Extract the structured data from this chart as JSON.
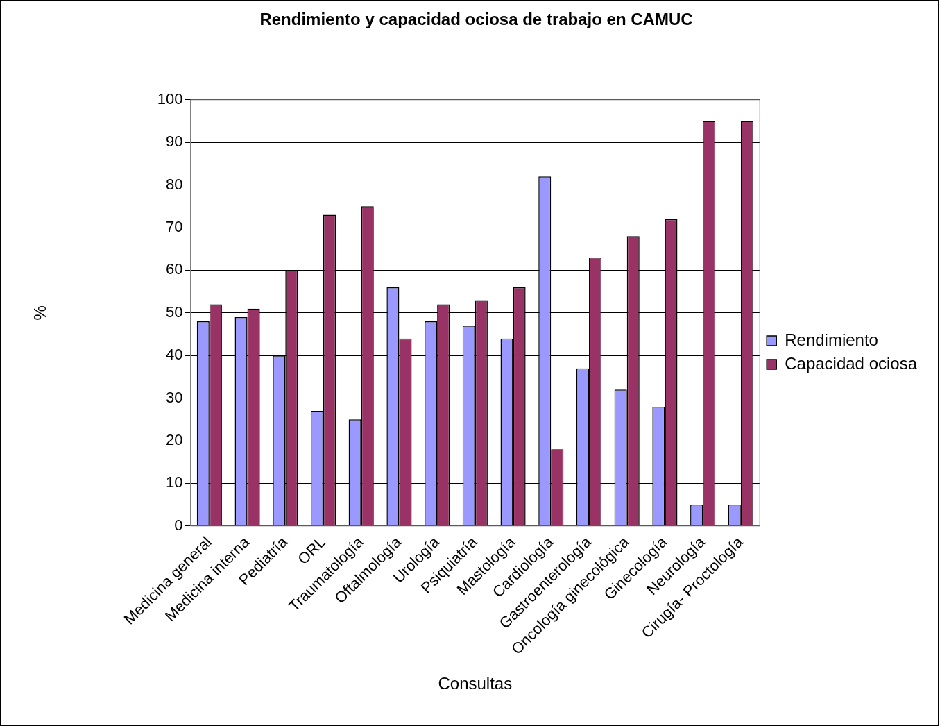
{
  "chart_data": {
    "type": "bar",
    "title": "Rendimiento y capacidad ociosa de trabajo en CAMUC",
    "xlabel": "Consultas",
    "ylabel": "%",
    "categories": [
      "Medicina general",
      "Medicina interna",
      "Pediatría",
      "ORL",
      "Traumatología",
      "Oftalmología",
      "Urología",
      "Psiquiatría",
      "Mastología",
      "Cardiología",
      "Gastroenterología",
      "Oncología ginecológica",
      "Ginecología",
      "Neurología",
      "Cirugía- Proctología"
    ],
    "series": [
      {
        "name": "Rendimiento",
        "color": "#9999ff",
        "values": [
          48,
          49,
          40,
          27,
          25,
          56,
          48,
          47,
          44,
          82,
          37,
          32,
          28,
          5,
          5
        ]
      },
      {
        "name": "Capacidad ociosa",
        "color": "#993366",
        "values": [
          52,
          51,
          60,
          73,
          75,
          44,
          52,
          53,
          56,
          18,
          63,
          68,
          72,
          95,
          95
        ]
      }
    ],
    "ylim": [
      0,
      100
    ],
    "yticks": [
      0,
      10,
      20,
      30,
      40,
      50,
      60,
      70,
      80,
      90,
      100
    ],
    "grid": "y",
    "legend": "right"
  }
}
